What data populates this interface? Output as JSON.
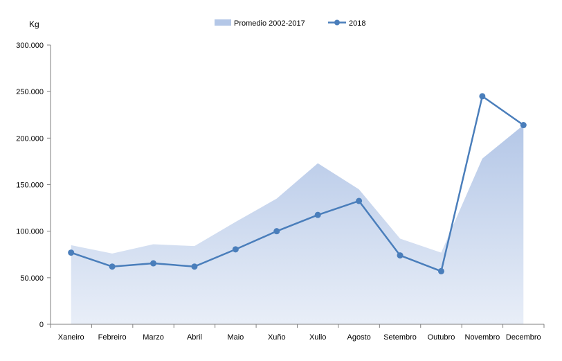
{
  "chart_data": {
    "type": "line",
    "ylabel": "Kg",
    "ylim": [
      0,
      300000
    ],
    "yticks": [
      0,
      50000,
      100000,
      150000,
      200000,
      250000,
      300000
    ],
    "ytick_labels": [
      "0",
      "50.000",
      "100.000",
      "150.000",
      "200.000",
      "250.000",
      "300.000"
    ],
    "categories": [
      "Xaneiro",
      "Febreiro",
      "Marzo",
      "Abril",
      "Maio",
      "Xuño",
      "Xullo",
      "Agosto",
      "Setembro",
      "Outubro",
      "Novembro",
      "Decembro"
    ],
    "legend_position": "top-center",
    "grid": false,
    "series": [
      {
        "name": "Promedio 2002-2017",
        "kind": "area",
        "color": "#b4c7e7",
        "values": [
          85000,
          76000,
          86000,
          84000,
          110000,
          135000,
          173000,
          145000,
          92000,
          77000,
          178000,
          214000
        ]
      },
      {
        "name": "2018",
        "kind": "line",
        "color": "#4a7ebb",
        "values": [
          77000,
          62000,
          65500,
          62000,
          80500,
          100000,
          117500,
          132500,
          74000,
          57000,
          245000,
          214000
        ]
      }
    ]
  }
}
